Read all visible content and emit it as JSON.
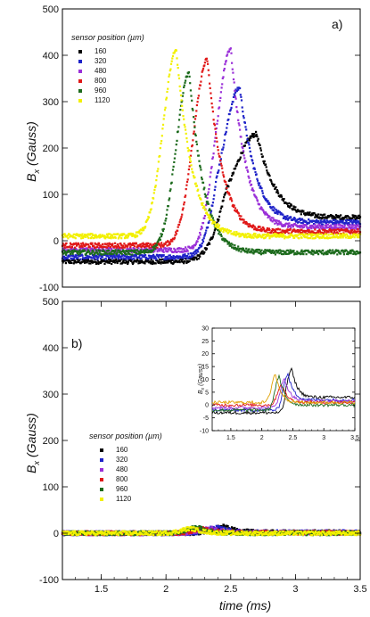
{
  "colors": {
    "s160": "#000000",
    "s320": "#1f23c8",
    "s480": "#9a30d8",
    "s800": "#e01818",
    "s960": "#1d6b1d",
    "s1120": "#f2f000"
  },
  "chart_data": [
    {
      "type": "scatter",
      "panel_label": "a)",
      "title": "",
      "xlabel": "",
      "ylabel": "B",
      "ylabel_sub": "x",
      "ylabel_unit": "(Gauss)",
      "xlim": [
        1.2,
        3.5
      ],
      "ylim": [
        -100,
        500
      ],
      "xticks": [],
      "yticks": [
        -100,
        0,
        100,
        200,
        300,
        400,
        500
      ],
      "legend": {
        "title": "sensor position (µm)",
        "placement": "top-left"
      },
      "series": [
        {
          "name": "160",
          "color": "#000000",
          "baseline_before": -45,
          "baseline_after": 50,
          "peak_x": 2.7,
          "peak_y": 230,
          "rise": 0.16,
          "decay": 0.15
        },
        {
          "name": "320",
          "color": "#1f23c8",
          "baseline_before": -35,
          "baseline_after": 40,
          "peak_x": 2.57,
          "peak_y": 330,
          "rise": 0.12,
          "decay": 0.13
        },
        {
          "name": "480",
          "color": "#9a30d8",
          "baseline_before": -20,
          "baseline_after": 30,
          "peak_x": 2.5,
          "peak_y": 415,
          "rise": 0.1,
          "decay": 0.12
        },
        {
          "name": "800",
          "color": "#e01818",
          "baseline_before": -10,
          "baseline_after": 20,
          "peak_x": 2.32,
          "peak_y": 390,
          "rise": 0.1,
          "decay": 0.12
        },
        {
          "name": "960",
          "color": "#1d6b1d",
          "baseline_before": -25,
          "baseline_after": -25,
          "peak_x": 2.18,
          "peak_y": 360,
          "rise": 0.1,
          "decay": 0.12
        },
        {
          "name": "1120",
          "color": "#f2f000",
          "baseline_before": 10,
          "baseline_after": 10,
          "peak_x": 2.08,
          "peak_y": 410,
          "rise": 0.1,
          "decay": 0.13
        }
      ]
    },
    {
      "type": "scatter",
      "panel_label": "b)",
      "title": "",
      "xlabel": "time (ms)",
      "ylabel": "B",
      "ylabel_sub": "x",
      "ylabel_unit": "(Gauss)",
      "xlim": [
        1.2,
        3.5
      ],
      "ylim": [
        -100,
        500
      ],
      "xticks": [
        1.5,
        2,
        2.5,
        3,
        3.5
      ],
      "yticks": [
        -100,
        0,
        100,
        200,
        300,
        400,
        500
      ],
      "legend": {
        "title": "sensor position (µm)",
        "placement": "center-left"
      },
      "series": [
        {
          "name": "160",
          "color": "#000000",
          "baseline_before": 0,
          "baseline_after": 2,
          "peak_x": 2.45,
          "peak_y": 14,
          "rise": 0.08,
          "decay": 0.1
        },
        {
          "name": "320",
          "color": "#1f23c8",
          "baseline_before": 0,
          "baseline_after": 2,
          "peak_x": 2.4,
          "peak_y": 12,
          "rise": 0.08,
          "decay": 0.1
        },
        {
          "name": "480",
          "color": "#9a30d8",
          "baseline_before": 0,
          "baseline_after": 1,
          "peak_x": 2.35,
          "peak_y": 10,
          "rise": 0.08,
          "decay": 0.1
        },
        {
          "name": "800",
          "color": "#e01818",
          "baseline_before": 0,
          "baseline_after": 1,
          "peak_x": 2.3,
          "peak_y": 9,
          "rise": 0.08,
          "decay": 0.1
        },
        {
          "name": "960",
          "color": "#1d6b1d",
          "baseline_before": 0,
          "baseline_after": 0,
          "peak_x": 2.25,
          "peak_y": 12,
          "rise": 0.08,
          "decay": 0.1
        },
        {
          "name": "1120",
          "color": "#f2f000",
          "baseline_before": 0,
          "baseline_after": 0,
          "peak_x": 2.2,
          "peak_y": 10,
          "rise": 0.08,
          "decay": 0.1
        }
      ]
    },
    {
      "type": "line",
      "panel_label": "inset",
      "title": "",
      "xlabel": "",
      "ylabel": "B",
      "ylabel_sub": "x",
      "ylabel_unit": "(Gauss)",
      "xlim": [
        1.2,
        3.5
      ],
      "ylim": [
        -10,
        30
      ],
      "xticks": [
        1.5,
        2,
        2.5,
        3,
        3.5
      ],
      "yticks": [
        -10,
        -5,
        0,
        5,
        10,
        15,
        20,
        25,
        30
      ],
      "series": [
        {
          "name": "160",
          "color": "#000000",
          "baseline_before": -3,
          "baseline_after": 3,
          "peak_x": 2.48,
          "peak_y": 14,
          "rise": 0.06,
          "decay": 0.1
        },
        {
          "name": "320",
          "color": "#1f23c8",
          "baseline_before": -2,
          "baseline_after": 2,
          "peak_x": 2.42,
          "peak_y": 12,
          "rise": 0.06,
          "decay": 0.1
        },
        {
          "name": "480",
          "color": "#9a30d8",
          "baseline_before": -1,
          "baseline_after": 1.5,
          "peak_x": 2.37,
          "peak_y": 10,
          "rise": 0.06,
          "decay": 0.1
        },
        {
          "name": "800",
          "color": "#e01818",
          "baseline_before": 0,
          "baseline_after": 1,
          "peak_x": 2.32,
          "peak_y": 8,
          "rise": 0.06,
          "decay": 0.1
        },
        {
          "name": "960",
          "color": "#1d6b1d",
          "baseline_before": -2,
          "baseline_after": 0,
          "peak_x": 2.28,
          "peak_y": 11,
          "rise": 0.06,
          "decay": 0.1
        },
        {
          "name": "1120",
          "color": "#e0a000",
          "baseline_before": 1,
          "baseline_after": 1,
          "peak_x": 2.22,
          "peak_y": 12,
          "rise": 0.06,
          "decay": 0.1
        }
      ]
    }
  ]
}
